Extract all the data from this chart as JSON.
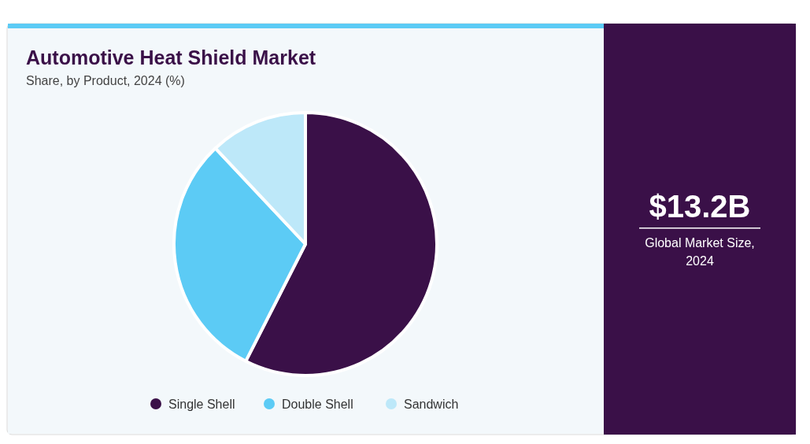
{
  "chart_data": {
    "type": "pie",
    "title": "Automotive Heat Shield Market",
    "subtitle": "Share, by Product, 2024 (%)",
    "categories": [
      "Single Shell",
      "Double Shell",
      "Sandwich"
    ],
    "values": [
      57.5,
      30.5,
      12
    ],
    "colors": [
      "#3a1048",
      "#5ccbf5",
      "#bde8f9"
    ],
    "legend": "bottom",
    "annotations": [
      "$13.2B",
      "Global Market Size, 2024"
    ]
  }
}
